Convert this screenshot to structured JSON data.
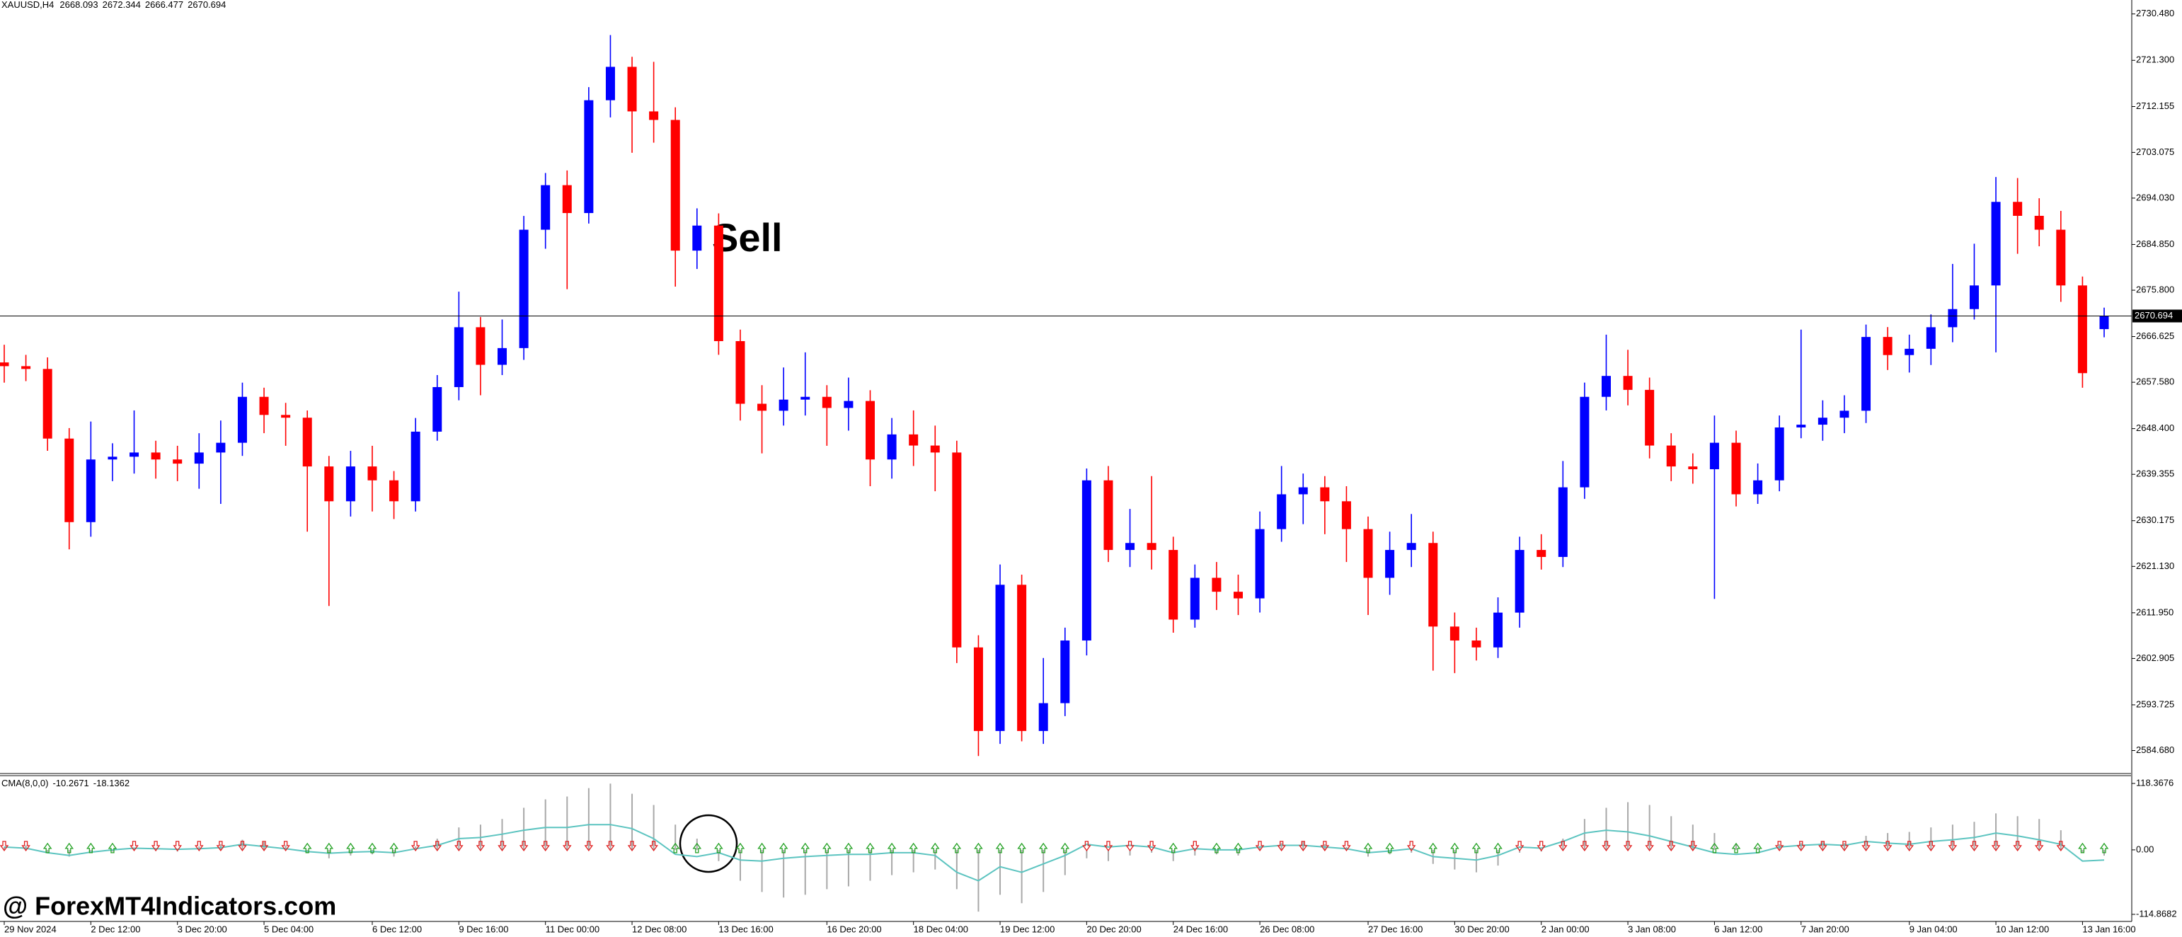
{
  "chart_data": [
    {
      "type": "candlestick",
      "title": "XAUUSD,H4",
      "annotation": "Sell",
      "watermark": "@ ForexMT4Indicators.com",
      "up_color": "#0000ff",
      "down_color": "#ff0000",
      "categories": [
        "29 Nov 2024",
        null,
        null,
        null,
        "2 Dec 12:00",
        null,
        null,
        null,
        "3 Dec 20:00",
        null,
        null,
        null,
        "5 Dec 04:00",
        null,
        null,
        null,
        null,
        "6 Dec 12:00",
        null,
        null,
        null,
        "9 Dec 16:00",
        null,
        null,
        null,
        "11 Dec 00:00",
        null,
        null,
        null,
        "12 Dec 08:00",
        null,
        null,
        null,
        "13 Dec 16:00",
        null,
        null,
        null,
        null,
        "16 Dec 20:00",
        null,
        null,
        null,
        "18 Dec 04:00",
        null,
        null,
        null,
        "19 Dec 12:00",
        null,
        null,
        null,
        "20 Dec 20:00",
        null,
        null,
        null,
        "24 Dec 16:00",
        null,
        null,
        null,
        "26 Dec 08:00",
        null,
        null,
        null,
        null,
        "27 Dec 16:00",
        null,
        null,
        null,
        "30 Dec 20:00",
        null,
        null,
        null,
        "2 Jan 00:00",
        null,
        null,
        null,
        "3 Jan 08:00",
        null,
        null,
        null,
        "6 Jan 12:00",
        null,
        null,
        null,
        "7 Jan 20:00",
        null,
        null,
        null,
        null,
        "9 Jan 04:00",
        null,
        null,
        null,
        "10 Jan 12:00",
        null,
        null,
        null,
        "13 Jan 16:00",
        null
      ],
      "open": [
        2661.5,
        2660.76,
        2660.21,
        2646.43,
        2629.89,
        2642.29,
        2642.84,
        2643.67,
        2642.29,
        2641.47,
        2643.67,
        2645.6,
        2654.69,
        2651.11,
        2650.56,
        2640.91,
        2634.02,
        2640.91,
        2638.16,
        2634.02,
        2647.8,
        2656.62,
        2668.47,
        2661.03,
        2664.34,
        2687.77,
        2696.59,
        2691.07,
        2713.4,
        2720.01,
        2711.19,
        2709.5,
        2683.63,
        2688.59,
        2665.72,
        2653.32,
        2651.94,
        2654.14,
        2654.69,
        2652.49,
        2653.87,
        2642.29,
        2647.25,
        2645.05,
        2643.67,
        2605.09,
        2588.55,
        2617.49,
        2588.55,
        2594.06,
        2606.46,
        2638.16,
        2624.38,
        2625.76,
        2624.38,
        2610.6,
        2618.87,
        2616.11,
        2614.8,
        2628.51,
        2635.4,
        2636.78,
        2634.02,
        2628.51,
        2618.87,
        2624.38,
        2625.76,
        2609.22,
        2606.46,
        2605.09,
        2611.98,
        2624.38,
        2623.0,
        2636.78,
        2654.69,
        2658.83,
        2656.07,
        2645.05,
        2640.91,
        2640.36,
        2645.6,
        2635.4,
        2638.16,
        2648.63,
        2649.18,
        2650.56,
        2651.94,
        2666.54,
        2662.96,
        2664.2,
        2668.47,
        2672.06,
        2676.74,
        2693.28,
        2690.52,
        2687.77,
        2676.74,
        2668.093
      ],
      "high": [
        2665,
        2663,
        2662.5,
        2648.5,
        2649.8,
        2645.5,
        2652,
        2646,
        2645,
        2647.5,
        2650,
        2657.5,
        2656.5,
        2653.5,
        2652,
        2643,
        2644,
        2645,
        2640,
        2650.5,
        2659,
        2675.5,
        2670.5,
        2670,
        2690.5,
        2699,
        2699.5,
        2716,
        2726.3,
        2722,
        2721,
        2712,
        2692,
        2691,
        2668,
        2657,
        2660.5,
        2663.5,
        2657,
        2658.5,
        2656,
        2650.5,
        2652,
        2649,
        2646,
        2607.5,
        2621.5,
        2619.5,
        2603,
        2609,
        2640.5,
        2641,
        2632.5,
        2639,
        2627,
        2621.5,
        2622,
        2619.5,
        2632,
        2641,
        2639.5,
        2639,
        2637,
        2631,
        2628,
        2631.5,
        2628,
        2612,
        2609,
        2615,
        2627,
        2627.5,
        2642,
        2657.5,
        2667,
        2664,
        2658.5,
        2647.5,
        2643.5,
        2651,
        2648,
        2641.5,
        2651,
        2668,
        2654,
        2655,
        2669,
        2668.5,
        2667,
        2671,
        2681,
        2685,
        2698.2,
        2698,
        2694,
        2691.5,
        2678.5,
        2672.344
      ],
      "low": [
        2657.5,
        2657.8,
        2644,
        2624.5,
        2627,
        2638,
        2639.5,
        2638.5,
        2638,
        2636.5,
        2633.5,
        2643,
        2647.5,
        2645,
        2628,
        2613.3,
        2631,
        2632,
        2630.5,
        2632,
        2646,
        2654,
        2655,
        2659,
        2662,
        2684,
        2676,
        2689,
        2710,
        2703,
        2705,
        2676.5,
        2680,
        2663,
        2650,
        2643.5,
        2649,
        2651,
        2645,
        2648,
        2637,
        2638.5,
        2641,
        2636,
        2602,
        2583.6,
        2586,
        2586.5,
        2586,
        2591.5,
        2603.5,
        2622,
        2621,
        2620.5,
        2608,
        2609,
        2612.5,
        2611.5,
        2612,
        2626,
        2629.5,
        2627.5,
        2622,
        2611.5,
        2615.5,
        2621,
        2600.5,
        2600,
        2602.5,
        2603,
        2609,
        2620.5,
        2621,
        2634.5,
        2652,
        2653,
        2642.5,
        2638,
        2637.5,
        2614.7,
        2633,
        2633.5,
        2636,
        2646.5,
        2646,
        2647.5,
        2649.5,
        2660,
        2659.5,
        2661,
        2665.5,
        2670,
        2663.5,
        2683,
        2684.5,
        2673.5,
        2656.5,
        2666.477
      ],
      "close": [
        2660.76,
        2660.21,
        2646.43,
        2629.89,
        2642.29,
        2642.84,
        2643.67,
        2642.29,
        2641.47,
        2643.67,
        2645.6,
        2654.69,
        2651.11,
        2650.56,
        2640.91,
        2634.02,
        2640.91,
        2638.16,
        2634.02,
        2647.8,
        2656.62,
        2668.47,
        2661.03,
        2664.34,
        2687.77,
        2696.59,
        2691.07,
        2713.4,
        2720.01,
        2711.19,
        2709.5,
        2683.63,
        2688.59,
        2665.72,
        2653.32,
        2651.94,
        2654.14,
        2654.69,
        2652.49,
        2653.87,
        2642.29,
        2647.25,
        2645.05,
        2643.67,
        2605.09,
        2588.55,
        2617.49,
        2588.55,
        2594.06,
        2606.46,
        2638.16,
        2624.38,
        2625.76,
        2624.38,
        2610.6,
        2618.87,
        2616.11,
        2614.8,
        2628.51,
        2635.4,
        2636.78,
        2634.02,
        2628.51,
        2618.87,
        2624.38,
        2625.76,
        2609.22,
        2606.46,
        2605.09,
        2611.98,
        2624.38,
        2623.0,
        2636.78,
        2654.69,
        2658.83,
        2656.07,
        2645.05,
        2640.91,
        2640.36,
        2645.6,
        2635.4,
        2638.16,
        2648.63,
        2649.18,
        2650.56,
        2651.94,
        2666.54,
        2662.96,
        2664.2,
        2668.47,
        2672.06,
        2676.74,
        2693.28,
        2690.52,
        2687.77,
        2676.74,
        2659.38,
        2670.694
      ],
      "ylim": [
        2580.27,
        2733.24
      ],
      "yticks": [
        {
          "value": 2730.48,
          "label": "2730.480"
        },
        {
          "value": 2721.3,
          "label": "2721.300"
        },
        2712.155,
        2703.075,
        {
          "value": 2694.03,
          "label": "2694.030"
        },
        {
          "value": 2684.85,
          "label": "2684.850"
        },
        {
          "value": 2675.8,
          "label": "2675.800"
        },
        2666.625,
        {
          "value": 2657.58,
          "label": "2657.580"
        },
        {
          "value": 2648.4,
          "label": "2648.400"
        },
        2639.355,
        2630.175,
        {
          "value": 2621.13,
          "label": "2621.130"
        },
        {
          "value": 2611.95,
          "label": "2611.950"
        },
        2602.905,
        2593.725,
        {
          "value": 2584.68,
          "label": "2584.680"
        }
      ],
      "price_line": true
    },
    {
      "type": "oscillator",
      "title": "CMA(8,0,0)",
      "signal_colors": {
        "up": "#22a022",
        "down": "#e02020"
      },
      "series": [
        {
          "style": "bar",
          "color": "#a8a8a8",
          "values": [
            5,
            8,
            -6,
            -12,
            -4,
            -3,
            4,
            -2,
            -3,
            6,
            10,
            18,
            14,
            8,
            -6,
            -15,
            -10,
            -8,
            -12,
            6,
            20,
            40,
            45,
            55,
            75,
            90,
            95,
            110,
            118,
            100,
            80,
            45,
            20,
            -20,
            -55,
            -75,
            -85,
            -80,
            -70,
            -65,
            -55,
            -45,
            -40,
            -35,
            -70,
            -110,
            -80,
            -95,
            -75,
            -45,
            -15,
            -20,
            -10,
            -5,
            -20,
            -10,
            -8,
            -10,
            5,
            12,
            15,
            10,
            5,
            -12,
            -8,
            -5,
            -25,
            -35,
            -40,
            -28,
            -5,
            -3,
            20,
            55,
            75,
            85,
            80,
            60,
            45,
            30,
            10,
            5,
            10,
            12,
            15,
            12,
            25,
            30,
            32,
            40,
            45,
            50,
            65,
            60,
            55,
            35,
            -5,
            -10.2671
          ]
        },
        {
          "style": "line",
          "color": "#5cc4c0",
          "values": [
            5,
            3,
            -5,
            -10,
            -4,
            0,
            3,
            2,
            1,
            2,
            4,
            10,
            6,
            2,
            -3,
            -6,
            -4,
            -3,
            -5,
            2,
            8,
            20,
            22,
            28,
            35,
            40,
            40,
            45,
            45,
            38,
            20,
            -8,
            -12,
            -5,
            -18,
            -20,
            -15,
            -12,
            -10,
            -8,
            -8,
            -5,
            -5,
            -10,
            -40,
            -55,
            -30,
            -40,
            -25,
            -10,
            10,
            5,
            8,
            5,
            -5,
            2,
            0,
            0,
            5,
            8,
            8,
            5,
            2,
            -5,
            -2,
            2,
            -12,
            -15,
            -18,
            -10,
            5,
            3,
            15,
            30,
            35,
            32,
            25,
            15,
            5,
            -5,
            -8,
            -5,
            5,
            8,
            10,
            8,
            15,
            12,
            10,
            15,
            18,
            22,
            30,
            25,
            18,
            10,
            -20,
            -18.1362
          ]
        }
      ],
      "ylim": [
        -127.5,
        131.0
      ],
      "yticks": [
        118.3676,
        {
          "value": 0,
          "label": "0.00"
        },
        -114.8682
      ]
    }
  ]
}
